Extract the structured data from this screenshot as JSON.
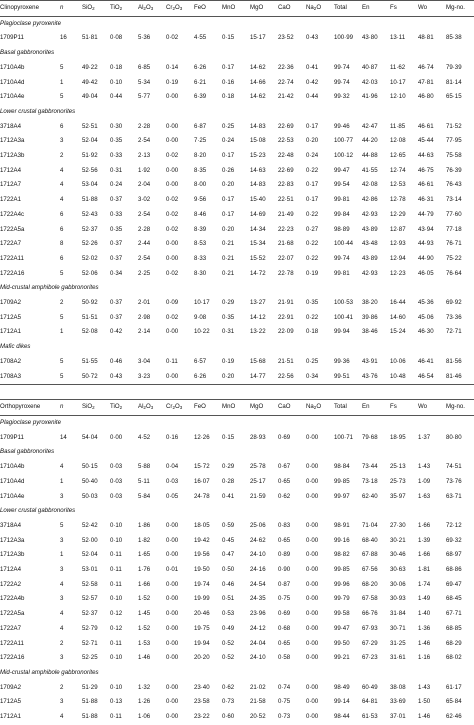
{
  "tables": [
    {
      "id": "cpx",
      "headers": [
        "Clinopyroxene",
        "n",
        "SiO2",
        "TiO2",
        "Al2O3",
        "Cr2O3",
        "FeO",
        "MnO",
        "MgO",
        "CaO",
        "Na2O",
        "Total",
        "En",
        "Fs",
        "Wo",
        "Mg-no."
      ],
      "groups": [
        {
          "label": "Plagioclase pyroxenite",
          "rows": [
            [
              "1709P11",
              "16",
              "51·81",
              "0·08",
              "5·36",
              "0·02",
              "4·55",
              "0·15",
              "15·17",
              "23·52",
              "0·43",
              "100·99",
              "43·80",
              "13·11",
              "48·81",
              "85·38"
            ]
          ]
        },
        {
          "label": "Basal gabbronorites",
          "rows": [
            [
              "1710A4b",
              "5",
              "49·22",
              "0·18",
              "6·85",
              "0·14",
              "6·26",
              "0·17",
              "14·62",
              "22·36",
              "0·41",
              "99·74",
              "40·87",
              "11·62",
              "46·74",
              "79·39"
            ],
            [
              "1710A4d",
              "1",
              "49·42",
              "0·10",
              "5·34",
              "0·19",
              "6·21",
              "0·16",
              "14·66",
              "22·74",
              "0·42",
              "99·74",
              "42·03",
              "10·17",
              "47·81",
              "81·14"
            ],
            [
              "1710A4e",
              "5",
              "49·04",
              "0·44",
              "5·77",
              "0·00",
              "6·39",
              "0·18",
              "14·62",
              "21·42",
              "0·44",
              "99·32",
              "41·96",
              "12·10",
              "46·80",
              "65·15"
            ]
          ]
        },
        {
          "label": "Lower crustal gabbronorites",
          "rows": [
            [
              "3718A4",
              "6",
              "52·51",
              "0·30",
              "2·28",
              "0·00",
              "6·87",
              "0·25",
              "14·83",
              "22·69",
              "0·17",
              "99·46",
              "42·47",
              "11·85",
              "46·61",
              "71·52"
            ],
            [
              "1712A3a",
              "3",
              "52·04",
              "0·35",
              "2·54",
              "0·00",
              "7·25",
              "0·24",
              "15·08",
              "22·53",
              "0·20",
              "100·77",
              "44·20",
              "12·08",
              "45·44",
              "77·95"
            ],
            [
              "1712A3b",
              "2",
              "51·92",
              "0·33",
              "2·13",
              "0·02",
              "8·20",
              "0·17",
              "15·23",
              "22·48",
              "0·24",
              "100·12",
              "44·88",
              "12·65",
              "44·63",
              "75·58"
            ],
            [
              "1712A4",
              "4",
              "52·56",
              "0·31",
              "1·92",
              "0·00",
              "8·35",
              "0·26",
              "14·63",
              "22·69",
              "0·22",
              "99·47",
              "41·55",
              "12·74",
              "46·75",
              "76·39"
            ],
            [
              "1712A7",
              "4",
              "53·04",
              "0·24",
              "2·04",
              "0·00",
              "8·00",
              "0·20",
              "14·83",
              "22·83",
              "0·17",
              "99·54",
              "42·08",
              "12·53",
              "46·61",
              "76·43"
            ],
            [
              "1722A1",
              "4",
              "51·88",
              "0·37",
              "3·02",
              "0·02",
              "9·56",
              "0·17",
              "15·40",
              "22·51",
              "0·17",
              "99·81",
              "42·86",
              "12·78",
              "46·31",
              "73·14"
            ],
            [
              "1722A4c",
              "6",
              "52·43",
              "0·33",
              "2·54",
              "0·02",
              "8·46",
              "0·17",
              "14·69",
              "21·49",
              "0·22",
              "99·84",
              "42·93",
              "12·29",
              "44·79",
              "77·60"
            ],
            [
              "1722A5a",
              "6",
              "52·37",
              "0·35",
              "2·28",
              "0·02",
              "8·39",
              "0·20",
              "14·34",
              "22·23",
              "0·27",
              "98·89",
              "43·89",
              "12·87",
              "43·94",
              "77·18"
            ],
            [
              "1722A7",
              "8",
              "52·26",
              "0·37",
              "2·44",
              "0·00",
              "8·53",
              "0·21",
              "15·34",
              "21·68",
              "0·22",
              "100·44",
              "43·48",
              "12·93",
              "44·93",
              "76·71"
            ],
            [
              "1722A11",
              "6",
              "52·02",
              "0·37",
              "2·54",
              "0·00",
              "8·33",
              "0·21",
              "15·52",
              "22·07",
              "0·22",
              "99·74",
              "43·89",
              "12·94",
              "44·90",
              "75·22"
            ],
            [
              "1722A16",
              "5",
              "52·06",
              "0·34",
              "2·25",
              "0·02",
              "8·30",
              "0·21",
              "14·72",
              "22·78",
              "0·19",
              "99·81",
              "42·93",
              "12·23",
              "46·05",
              "76·64"
            ]
          ]
        },
        {
          "label": "Mid-crustal amphibole gabbronorites",
          "rows": [
            [
              "1709A2",
              "2",
              "50·92",
              "0·37",
              "2·01",
              "0·09",
              "10·17",
              "0·29",
              "13·27",
              "21·91",
              "0·35",
              "100·53",
              "38·20",
              "16·44",
              "45·36",
              "69·92"
            ],
            [
              "1712A5",
              "5",
              "51·51",
              "0·37",
              "2·98",
              "0·02",
              "9·08",
              "0·35",
              "14·12",
              "22·91",
              "0·22",
              "100·41",
              "39·86",
              "14·60",
              "45·06",
              "73·36"
            ],
            [
              "1712A1",
              "1",
              "52·08",
              "0·42",
              "2·14",
              "0·00",
              "10·22",
              "0·31",
              "13·22",
              "22·09",
              "0·18",
              "99·94",
              "38·46",
              "15·24",
              "46·30",
              "72·71"
            ]
          ]
        },
        {
          "label": "Mafic dikes",
          "rows": [
            [
              "1708A2",
              "5",
              "51·55",
              "0·46",
              "3·04",
              "0·11",
              "6·57",
              "0·19",
              "15·68",
              "21·51",
              "0·25",
              "99·36",
              "43·91",
              "10·06",
              "46·41",
              "81·56"
            ],
            [
              "1708A3",
              "5",
              "50·72",
              "0·43",
              "3·23",
              "0·00",
              "6·26",
              "0·20",
              "14·77",
              "22·56",
              "0·34",
              "99·51",
              "43·76",
              "10·48",
              "46·54",
              "81·46"
            ]
          ]
        }
      ]
    },
    {
      "id": "opx",
      "headers": [
        "Orthopyroxene",
        "n",
        "SiO2",
        "TiO2",
        "Al2O3",
        "Cr2O3",
        "FeO",
        "MnO",
        "MgO",
        "CaO",
        "Na2O",
        "Total",
        "En",
        "Fs",
        "Wo",
        "Mg-no."
      ],
      "groups": [
        {
          "label": "Plagioclase pyroxenite",
          "rows": [
            [
              "1709P11",
              "14",
              "54·04",
              "0·00",
              "4·52",
              "0·16",
              "12·26",
              "0·15",
              "28·93",
              "0·69",
              "0·00",
              "100·71",
              "79·68",
              "18·95",
              "1·37",
              "80·80"
            ]
          ]
        },
        {
          "label": "Basal gabbronorites",
          "rows": [
            [
              "1710A4b",
              "4",
              "50·15",
              "0·03",
              "5·88",
              "0·04",
              "15·72",
              "0·29",
              "25·78",
              "0·67",
              "0·00",
              "98·84",
              "73·44",
              "25·13",
              "1·43",
              "74·51"
            ],
            [
              "1710A4d",
              "1",
              "50·40",
              "0·03",
              "5·11",
              "0·03",
              "16·07",
              "0·28",
              "25·17",
              "0·65",
              "0·00",
              "99·85",
              "73·18",
              "25·73",
              "1·09",
              "73·76"
            ],
            [
              "1710A4e",
              "3",
              "50·03",
              "0·03",
              "5·84",
              "0·05",
              "24·78",
              "0·41",
              "21·59",
              "0·62",
              "0·00",
              "99·97",
              "62·40",
              "35·97",
              "1·63",
              "63·71"
            ]
          ]
        },
        {
          "label": "Lower crustal gabbronorites",
          "rows": [
            [
              "3718A4",
              "5",
              "52·42",
              "0·10",
              "1·86",
              "0·00",
              "18·05",
              "0·59",
              "25·06",
              "0·83",
              "0·00",
              "98·91",
              "71·04",
              "27·30",
              "1·66",
              "72·12"
            ],
            [
              "1712A3a",
              "3",
              "52·00",
              "0·10",
              "1·82",
              "0·00",
              "19·42",
              "0·45",
              "24·62",
              "0·65",
              "0·00",
              "99·16",
              "68·40",
              "30·21",
              "1·39",
              "69·32"
            ],
            [
              "1712A3b",
              "1",
              "52·04",
              "0·11",
              "1·65",
              "0·00",
              "19·56",
              "0·47",
              "24·10",
              "0·89",
              "0·00",
              "98·82",
              "67·88",
              "30·46",
              "1·66",
              "68·97"
            ],
            [
              "1712A4",
              "3",
              "53·01",
              "0·11",
              "1·76",
              "0·01",
              "19·50",
              "0·50",
              "24·16",
              "0·90",
              "0·00",
              "99·85",
              "67·56",
              "30·63",
              "1·81",
              "68·86"
            ],
            [
              "1722A2",
              "4",
              "52·58",
              "0·11",
              "1·66",
              "0·00",
              "19·74",
              "0·46",
              "24·54",
              "0·87",
              "0·00",
              "99·96",
              "68·20",
              "30·06",
              "1·74",
              "69·47"
            ],
            [
              "1722A4b",
              "3",
              "52·57",
              "0·10",
              "1·52",
              "0·00",
              "19·99",
              "0·51",
              "24·35",
              "0·75",
              "0·00",
              "99·79",
              "67·58",
              "30·93",
              "1·49",
              "68·45"
            ],
            [
              "1722A5a",
              "4",
              "52·37",
              "0·12",
              "1·45",
              "0·00",
              "20·46",
              "0·53",
              "23·96",
              "0·69",
              "0·00",
              "99·58",
              "66·76",
              "31·84",
              "1·40",
              "67·71"
            ],
            [
              "1722A7",
              "4",
              "52·79",
              "0·12",
              "1·52",
              "0·00",
              "19·75",
              "0·49",
              "24·12",
              "0·68",
              "0·00",
              "99·47",
              "67·93",
              "30·71",
              "1·36",
              "68·85"
            ],
            [
              "1722A11",
              "2",
              "52·71",
              "0·11",
              "1·53",
              "0·00",
              "19·94",
              "0·52",
              "24·04",
              "0·65",
              "0·00",
              "99·50",
              "67·29",
              "31·25",
              "1·46",
              "68·29"
            ],
            [
              "1722A16",
              "3",
              "52·25",
              "0·10",
              "1·46",
              "0·00",
              "20·20",
              "0·52",
              "24·10",
              "0·58",
              "0·00",
              "99·21",
              "67·23",
              "31·61",
              "1·16",
              "68·02"
            ]
          ]
        },
        {
          "label": "Mid-crustal amphibole gabbronorites",
          "rows": [
            [
              "1709A2",
              "2",
              "51·29",
              "0·10",
              "1·32",
              "0·00",
              "23·40",
              "0·62",
              "21·02",
              "0·74",
              "0·00",
              "98·49",
              "60·49",
              "38·08",
              "1·43",
              "61·17"
            ],
            [
              "1712A5",
              "3",
              "51·88",
              "0·13",
              "1·26",
              "0·00",
              "23·58",
              "0·73",
              "21·58",
              "0·75",
              "0·00",
              "99·14",
              "64·81",
              "33·69",
              "1·50",
              "65·84"
            ],
            [
              "1712A1",
              "4",
              "51·88",
              "0·11",
              "1·06",
              "0·00",
              "23·22",
              "0·60",
              "20·52",
              "0·73",
              "0·00",
              "98·44",
              "61·53",
              "37·01",
              "1·46",
              "62·46"
            ]
          ]
        }
      ]
    }
  ]
}
